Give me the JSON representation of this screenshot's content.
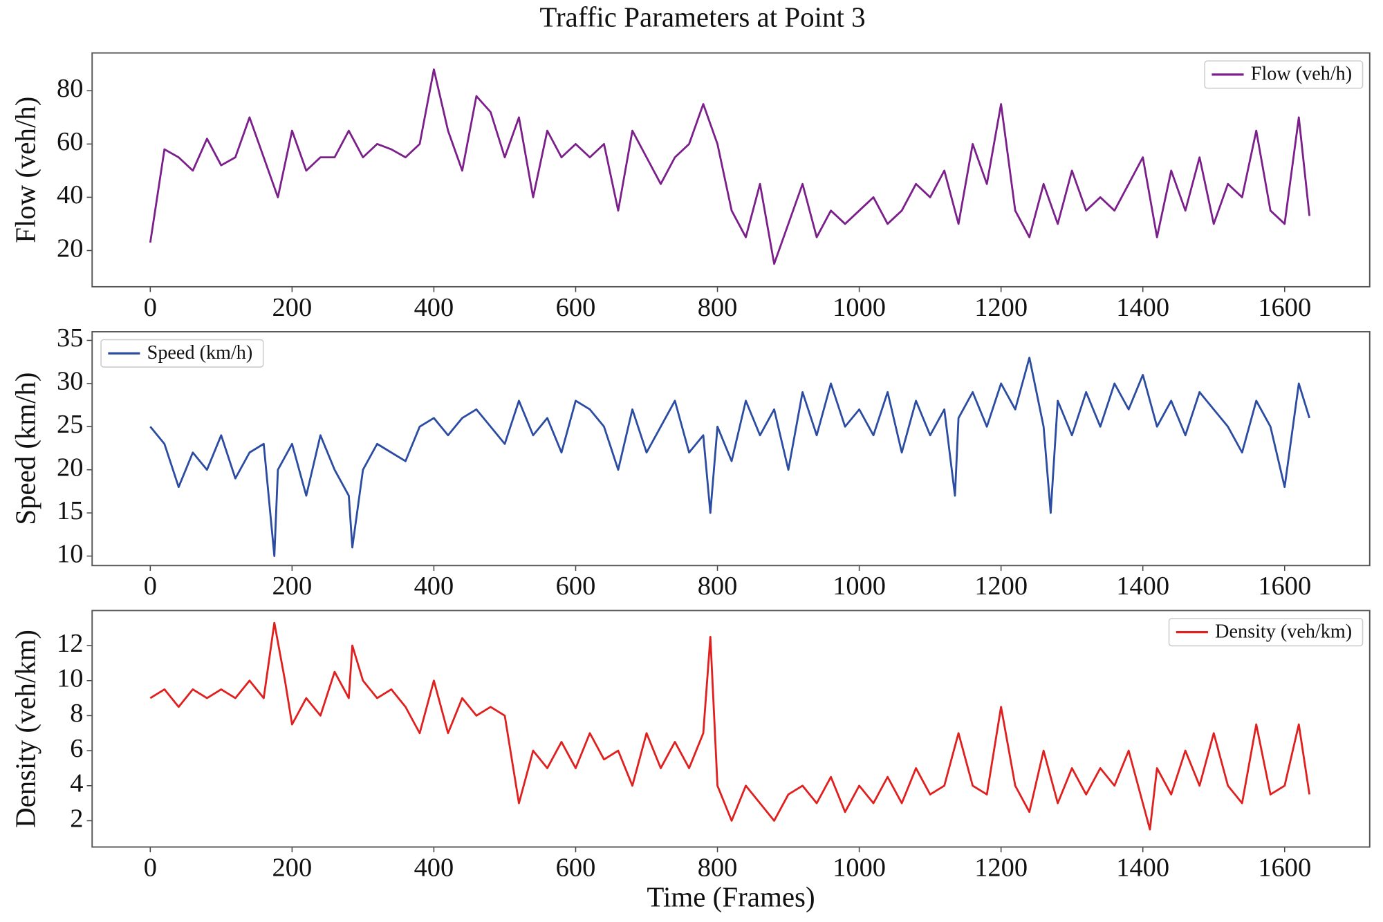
{
  "title": "Traffic Parameters at Point 3",
  "chart_data": [
    {
      "type": "line",
      "ylabel": "Flow (veh/h)",
      "legend": "upper right",
      "x": [
        0,
        20,
        40,
        60,
        80,
        100,
        120,
        140,
        160,
        180,
        200,
        220,
        240,
        260,
        280,
        300,
        320,
        340,
        360,
        380,
        400,
        420,
        440,
        460,
        480,
        500,
        520,
        540,
        560,
        580,
        600,
        620,
        640,
        660,
        680,
        700,
        720,
        740,
        760,
        780,
        800,
        820,
        840,
        860,
        880,
        900,
        920,
        940,
        960,
        980,
        1000,
        1020,
        1040,
        1060,
        1080,
        1100,
        1120,
        1140,
        1160,
        1180,
        1200,
        1220,
        1240,
        1260,
        1280,
        1300,
        1320,
        1340,
        1360,
        1380,
        1400,
        1420,
        1440,
        1460,
        1480,
        1500,
        1520,
        1540,
        1560,
        1580,
        1600,
        1620,
        1635
      ],
      "series": [
        {
          "name": "Flow (veh/h)",
          "color": "#7b1f8a",
          "values": [
            23,
            58,
            55,
            50,
            62,
            52,
            55,
            70,
            55,
            40,
            65,
            50,
            55,
            55,
            65,
            55,
            60,
            58,
            55,
            60,
            88,
            65,
            50,
            78,
            72,
            55,
            70,
            40,
            65,
            55,
            60,
            55,
            60,
            35,
            65,
            55,
            45,
            55,
            60,
            75,
            60,
            35,
            25,
            45,
            15,
            30,
            45,
            25,
            35,
            30,
            35,
            40,
            30,
            35,
            45,
            40,
            50,
            30,
            60,
            45,
            75,
            35,
            25,
            45,
            30,
            50,
            35,
            40,
            35,
            45,
            55,
            25,
            50,
            35,
            55,
            30,
            45,
            40,
            65,
            35,
            30,
            70,
            33
          ]
        }
      ],
      "xlim": [
        -82,
        1720
      ],
      "ylim": [
        6.4,
        94.2
      ],
      "xticks": [
        0,
        200,
        400,
        600,
        800,
        1000,
        1200,
        1400,
        1600
      ],
      "yticks": [
        20,
        40,
        60,
        80
      ]
    },
    {
      "type": "line",
      "ylabel": "Speed (km/h)",
      "legend": "upper left",
      "x": [
        0,
        20,
        40,
        60,
        80,
        100,
        120,
        140,
        160,
        175,
        180,
        200,
        220,
        240,
        260,
        280,
        285,
        300,
        320,
        340,
        360,
        380,
        400,
        420,
        440,
        460,
        480,
        500,
        520,
        540,
        560,
        580,
        600,
        620,
        640,
        660,
        680,
        700,
        720,
        740,
        760,
        780,
        790,
        800,
        820,
        840,
        860,
        880,
        900,
        920,
        940,
        960,
        980,
        1000,
        1020,
        1040,
        1060,
        1080,
        1100,
        1120,
        1135,
        1140,
        1160,
        1180,
        1200,
        1220,
        1240,
        1260,
        1270,
        1280,
        1300,
        1320,
        1340,
        1360,
        1380,
        1400,
        1420,
        1440,
        1460,
        1480,
        1500,
        1520,
        1540,
        1560,
        1580,
        1600,
        1620,
        1635
      ],
      "series": [
        {
          "name": "Speed (km/h)",
          "color": "#2b4ca0",
          "values": [
            25,
            23,
            18,
            22,
            20,
            24,
            19,
            22,
            23,
            10,
            20,
            23,
            17,
            24,
            20,
            17,
            11,
            20,
            23,
            22,
            21,
            25,
            26,
            24,
            26,
            27,
            25,
            23,
            28,
            24,
            26,
            22,
            28,
            27,
            25,
            20,
            27,
            22,
            25,
            28,
            22,
            24,
            15,
            25,
            21,
            28,
            24,
            27,
            20,
            29,
            24,
            30,
            25,
            27,
            24,
            29,
            22,
            28,
            24,
            27,
            17,
            26,
            29,
            25,
            30,
            27,
            33,
            25,
            15,
            28,
            24,
            29,
            25,
            30,
            27,
            31,
            25,
            28,
            24,
            29,
            27,
            25,
            22,
            28,
            25,
            18,
            30,
            26
          ]
        }
      ],
      "xlim": [
        -82,
        1720
      ],
      "ylim": [
        8.9,
        36
      ],
      "xticks": [
        0,
        200,
        400,
        600,
        800,
        1000,
        1200,
        1400,
        1600
      ],
      "yticks": [
        10,
        15,
        20,
        25,
        30,
        35
      ]
    },
    {
      "type": "line",
      "ylabel": "Density (veh/km)",
      "xlabel": "Time (Frames)",
      "legend": "upper right",
      "x": [
        0,
        20,
        40,
        60,
        80,
        100,
        120,
        140,
        160,
        175,
        190,
        200,
        220,
        240,
        260,
        280,
        285,
        300,
        320,
        340,
        360,
        380,
        400,
        420,
        440,
        460,
        480,
        500,
        520,
        540,
        560,
        580,
        600,
        620,
        640,
        660,
        680,
        700,
        720,
        740,
        760,
        780,
        790,
        800,
        820,
        840,
        860,
        880,
        900,
        920,
        940,
        960,
        980,
        1000,
        1020,
        1040,
        1060,
        1080,
        1100,
        1120,
        1140,
        1160,
        1180,
        1200,
        1220,
        1240,
        1260,
        1280,
        1300,
        1320,
        1340,
        1360,
        1380,
        1400,
        1410,
        1420,
        1440,
        1460,
        1480,
        1500,
        1520,
        1540,
        1560,
        1580,
        1600,
        1620,
        1635
      ],
      "series": [
        {
          "name": "Density (veh/km)",
          "color": "#e0201f",
          "values": [
            9,
            9.5,
            8.5,
            9.5,
            9,
            9.5,
            9,
            10,
            9,
            13.3,
            10,
            7.5,
            9,
            8,
            10.5,
            9,
            12,
            10,
            9,
            9.5,
            8.5,
            7,
            10,
            7,
            9,
            8,
            8.5,
            8,
            3,
            6,
            5,
            6.5,
            5,
            7,
            5.5,
            6,
            4,
            7,
            5,
            6.5,
            5,
            7,
            12.5,
            4,
            2,
            4,
            3,
            2,
            3.5,
            4,
            3,
            4.5,
            2.5,
            4,
            3,
            4.5,
            3,
            5,
            3.5,
            4,
            7,
            4,
            3.5,
            8.5,
            4,
            2.5,
            6,
            3,
            5,
            3.5,
            5,
            4,
            6,
            3,
            1.5,
            5,
            3.5,
            6,
            4,
            7,
            4,
            3,
            7.5,
            3.5,
            4,
            7.5,
            3.5
          ]
        }
      ],
      "xlim": [
        -82,
        1720
      ],
      "ylim": [
        0.5,
        14
      ],
      "xticks": [
        0,
        200,
        400,
        600,
        800,
        1000,
        1200,
        1400,
        1600
      ],
      "yticks": [
        2,
        4,
        6,
        8,
        10,
        12
      ]
    }
  ]
}
